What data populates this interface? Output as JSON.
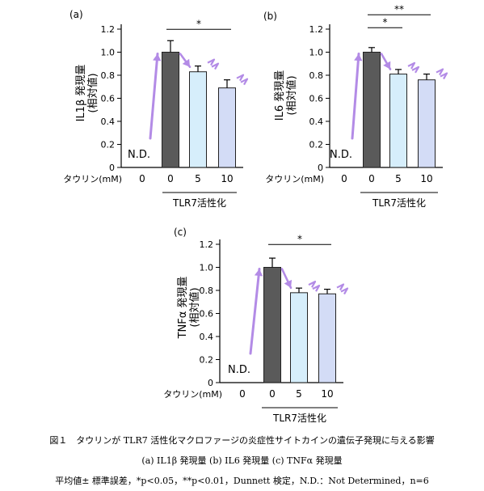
{
  "chart_data": [
    {
      "type": "bar",
      "panel_label": "(a)",
      "ylabel": "IL1β 発現量\n(相対値)",
      "ylim": [
        0,
        1.2
      ],
      "yticks": [
        "0",
        "0.2",
        "0.4",
        "0.6",
        "0.8",
        "1.0",
        "1.2"
      ],
      "xlabel_row": "タウリン(mM)",
      "categories": [
        "0",
        "0",
        "5",
        "10"
      ],
      "values": [
        0,
        1.0,
        0.83,
        0.69
      ],
      "errors": [
        0,
        0.1,
        0.05,
        0.07
      ],
      "bar_colors": [
        "none",
        "#5a5a5a",
        "#d6eefb",
        "#d3dcf6"
      ],
      "nd_label": "N.D.",
      "group_label": "TLR7活性化",
      "significance": [
        {
          "from": 1,
          "to": 3,
          "label": "*"
        }
      ]
    },
    {
      "type": "bar",
      "panel_label": "(b)",
      "ylabel": "IL6 発現量\n(相対値)",
      "ylim": [
        0,
        1.2
      ],
      "yticks": [
        "0",
        "0.2",
        "0.4",
        "0.6",
        "0.8",
        "1.0",
        "1.2"
      ],
      "xlabel_row": "タウリン(mM)",
      "categories": [
        "0",
        "0",
        "5",
        "10"
      ],
      "values": [
        0,
        1.0,
        0.81,
        0.76
      ],
      "errors": [
        0,
        0.04,
        0.04,
        0.05
      ],
      "bar_colors": [
        "none",
        "#5a5a5a",
        "#d6eefb",
        "#d3dcf6"
      ],
      "nd_label": "N.D.",
      "group_label": "TLR7活性化",
      "significance": [
        {
          "from": 1,
          "to": 2,
          "label": "*"
        },
        {
          "from": 1,
          "to": 3,
          "label": "**"
        }
      ]
    },
    {
      "type": "bar",
      "panel_label": "(c)",
      "ylabel": "TNFα 発現量\n(相対値)",
      "ylim": [
        0,
        1.2
      ],
      "yticks": [
        "0",
        "0.2",
        "0.4",
        "0.6",
        "0.8",
        "1.0",
        "1.2"
      ],
      "xlabel_row": "タウリン(mM)",
      "categories": [
        "0",
        "0",
        "5",
        "10"
      ],
      "values": [
        0,
        1.0,
        0.78,
        0.77
      ],
      "errors": [
        0,
        0.08,
        0.04,
        0.04
      ],
      "bar_colors": [
        "none",
        "#5a5a5a",
        "#d6eefb",
        "#d3dcf6"
      ],
      "nd_label": "N.D.",
      "group_label": "TLR7活性化",
      "significance": [
        {
          "from": 1,
          "to": 3,
          "label": "*"
        }
      ]
    }
  ],
  "colors": {
    "arrow": "#b38be6",
    "axis": "#000000",
    "bar_edge": "#222222"
  },
  "caption": {
    "line1": "図１　タウリンが TLR7 活性化マクロファージの炎症性サイトカインの遺伝子発現に与える影響",
    "line2": "(a)  IL1β 発現量  (b)  IL6 発現量  (c)  TNFα 発現量",
    "line3": "平均値± 標準誤差，*p<0.05，**p<0.01，Dunnett 検定，N.D.：Not Determined，n=6"
  }
}
